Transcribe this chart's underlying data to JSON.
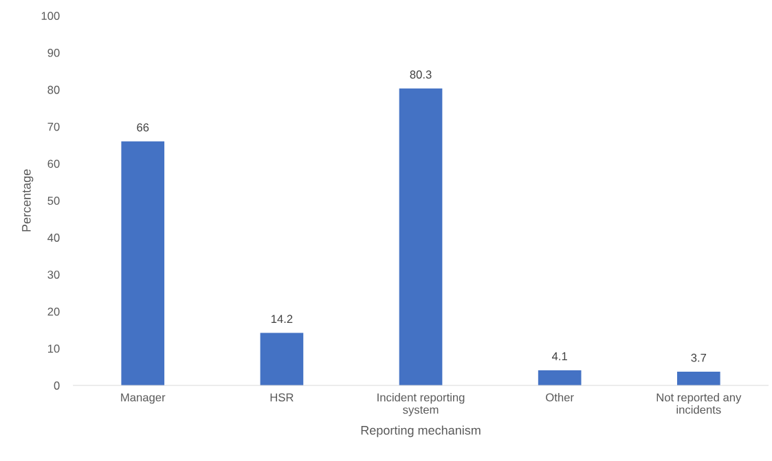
{
  "chart_data": {
    "type": "bar",
    "xlabel": "Reporting mechanism",
    "ylabel": "Percentage",
    "categories": [
      "Manager",
      "HSR",
      "Incident reporting system",
      "Other",
      "Not reported any incidents"
    ],
    "values": [
      66,
      14.2,
      80.3,
      4.1,
      3.7
    ],
    "color": "#4472c4",
    "ylim": [
      0,
      100
    ],
    "yticks": [
      0,
      10,
      20,
      30,
      40,
      50,
      60,
      70,
      80,
      90,
      100
    ],
    "data_labels": true,
    "grid": false,
    "legend": false
  }
}
